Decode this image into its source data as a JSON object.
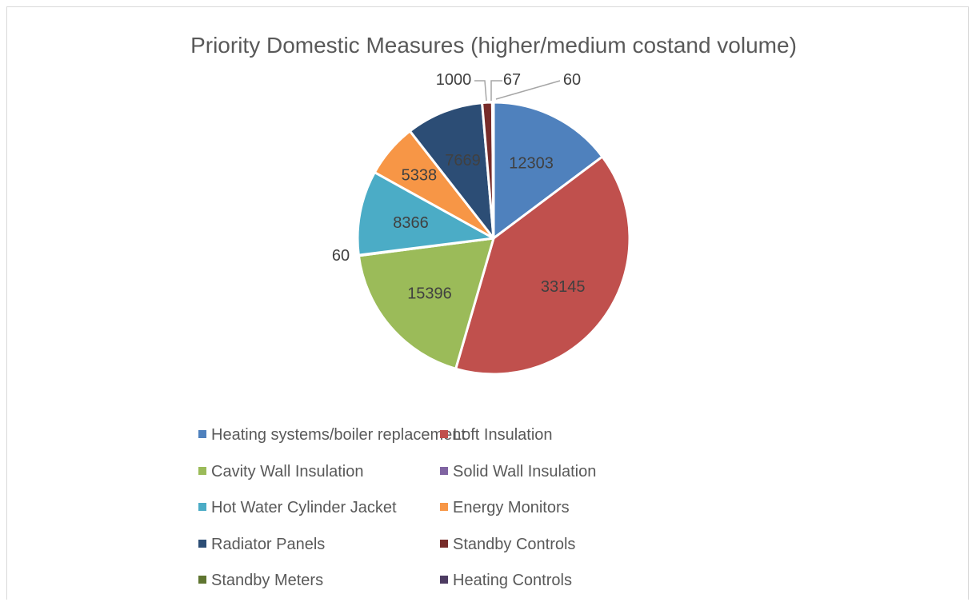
{
  "chart_data": {
    "type": "pie",
    "title": "Priority Domestic Measures (higher/medium costand volume)",
    "categories": [
      "Heating systems/boiler replacement",
      "Loft Insulation",
      "Cavity Wall Insulation",
      "Solid Wall Insulation",
      "Hot Water Cylinder Jacket",
      "Energy Monitors",
      "Radiator Panels",
      "Standby Controls",
      "Standby Meters",
      "Heating Controls"
    ],
    "values": [
      12303,
      33145,
      15396,
      60,
      8366,
      5338,
      7669,
      1000,
      67,
      60
    ],
    "labels": [
      "12303",
      "33145",
      "15396",
      "60",
      "8366",
      "5338",
      "7669",
      "1000",
      "67",
      "60"
    ],
    "colors": [
      "#4f81bd",
      "#c0504d",
      "#9bbb59",
      "#8064a2",
      "#4bacc6",
      "#f79646",
      "#2c4d75",
      "#772c2a",
      "#5f7530",
      "#4d3b62"
    ],
    "legend_position": "bottom"
  }
}
